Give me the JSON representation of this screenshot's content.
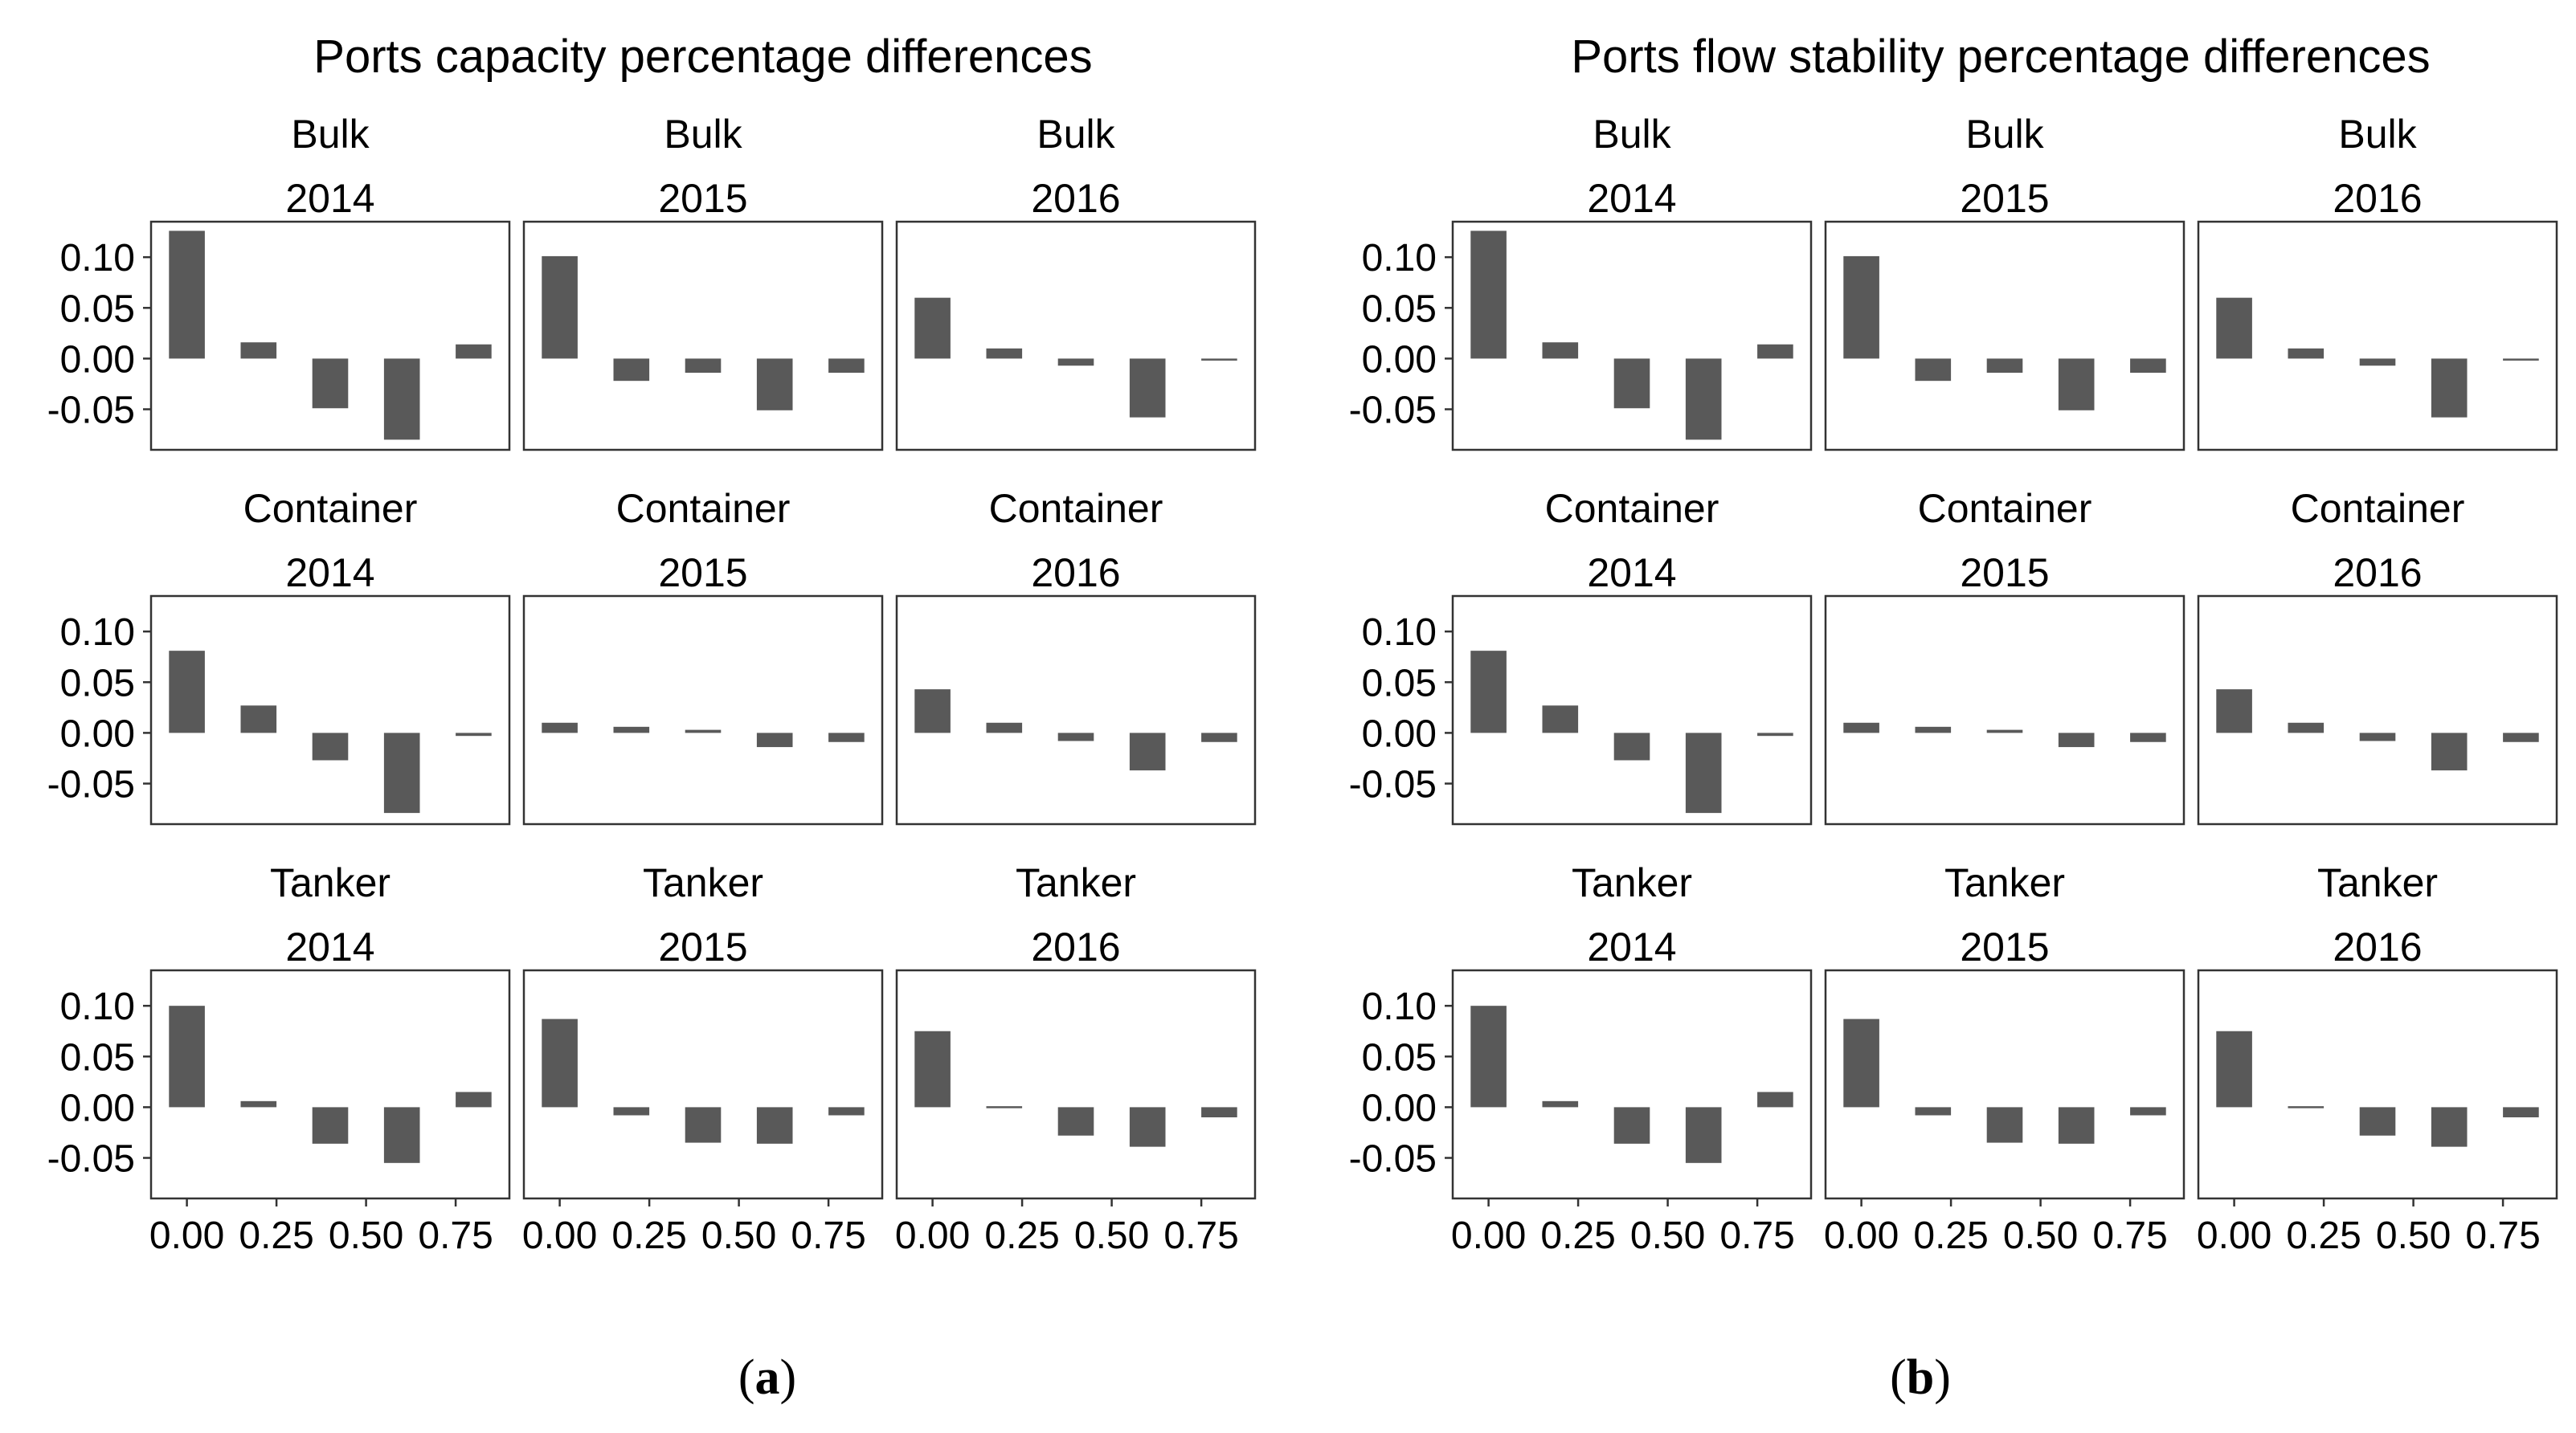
{
  "chart_data": [
    {
      "type": "bar",
      "id": "a",
      "caption_letter": "a",
      "title": "Ports capacity percentage differences",
      "ylim": [
        -0.09,
        0.135
      ],
      "xlim": [
        -0.1,
        0.9
      ],
      "y_ticks": [
        0.1,
        0.05,
        0.0,
        -0.05
      ],
      "y_tick_labels": [
        "0.10",
        "0.05",
        "0.00",
        "-0.05"
      ],
      "x_ticks": [
        0.0,
        0.25,
        0.5,
        0.75
      ],
      "x_tick_labels": [
        "0.00",
        "0.25",
        "0.50",
        "0.75"
      ],
      "x": [
        0.0,
        0.2,
        0.4,
        0.6,
        0.8
      ],
      "grid": false,
      "facets": [
        {
          "type": "Bulk",
          "year": "2014",
          "values": [
            0.126,
            0.016,
            -0.049,
            -0.08,
            0.014
          ]
        },
        {
          "type": "Bulk",
          "year": "2015",
          "values": [
            0.101,
            -0.022,
            -0.014,
            -0.051,
            -0.014
          ]
        },
        {
          "type": "Bulk",
          "year": "2016",
          "values": [
            0.06,
            0.01,
            -0.007,
            -0.058,
            -0.002
          ]
        },
        {
          "type": "Container",
          "year": "2014",
          "values": [
            0.081,
            0.027,
            -0.027,
            -0.079,
            -0.003
          ]
        },
        {
          "type": "Container",
          "year": "2015",
          "values": [
            0.01,
            0.006,
            0.003,
            -0.014,
            -0.009
          ]
        },
        {
          "type": "Container",
          "year": "2016",
          "values": [
            0.043,
            0.01,
            -0.008,
            -0.037,
            -0.009
          ]
        },
        {
          "type": "Tanker",
          "year": "2014",
          "values": [
            0.1,
            0.006,
            -0.036,
            -0.055,
            0.015
          ]
        },
        {
          "type": "Tanker",
          "year": "2015",
          "values": [
            0.087,
            -0.008,
            -0.035,
            -0.036,
            -0.008
          ]
        },
        {
          "type": "Tanker",
          "year": "2016",
          "values": [
            0.075,
            0.001,
            -0.028,
            -0.039,
            -0.01
          ]
        }
      ]
    },
    {
      "type": "bar",
      "id": "b",
      "caption_letter": "b",
      "title": "Ports flow stability percentage differences",
      "ylim": [
        -0.09,
        0.135
      ],
      "xlim": [
        -0.1,
        0.9
      ],
      "y_ticks": [
        0.1,
        0.05,
        0.0,
        -0.05
      ],
      "y_tick_labels": [
        "0.10",
        "0.05",
        "0.00",
        "-0.05"
      ],
      "x_ticks": [
        0.0,
        0.25,
        0.5,
        0.75
      ],
      "x_tick_labels": [
        "0.00",
        "0.25",
        "0.50",
        "0.75"
      ],
      "x": [
        0.0,
        0.2,
        0.4,
        0.6,
        0.8
      ],
      "grid": false,
      "facets": [
        {
          "type": "Bulk",
          "year": "2014",
          "values": [
            0.126,
            0.016,
            -0.049,
            -0.08,
            0.014
          ]
        },
        {
          "type": "Bulk",
          "year": "2015",
          "values": [
            0.101,
            -0.022,
            -0.014,
            -0.051,
            -0.014
          ]
        },
        {
          "type": "Bulk",
          "year": "2016",
          "values": [
            0.06,
            0.01,
            -0.007,
            -0.058,
            -0.002
          ]
        },
        {
          "type": "Container",
          "year": "2014",
          "values": [
            0.081,
            0.027,
            -0.027,
            -0.079,
            -0.003
          ]
        },
        {
          "type": "Container",
          "year": "2015",
          "values": [
            0.01,
            0.006,
            0.003,
            -0.014,
            -0.009
          ]
        },
        {
          "type": "Container",
          "year": "2016",
          "values": [
            0.043,
            0.01,
            -0.008,
            -0.037,
            -0.009
          ]
        },
        {
          "type": "Tanker",
          "year": "2014",
          "values": [
            0.1,
            0.006,
            -0.036,
            -0.055,
            0.015
          ]
        },
        {
          "type": "Tanker",
          "year": "2015",
          "values": [
            0.087,
            -0.008,
            -0.035,
            -0.036,
            -0.008
          ]
        },
        {
          "type": "Tanker",
          "year": "2016",
          "values": [
            0.075,
            0.001,
            -0.028,
            -0.039,
            -0.01
          ]
        }
      ]
    }
  ]
}
